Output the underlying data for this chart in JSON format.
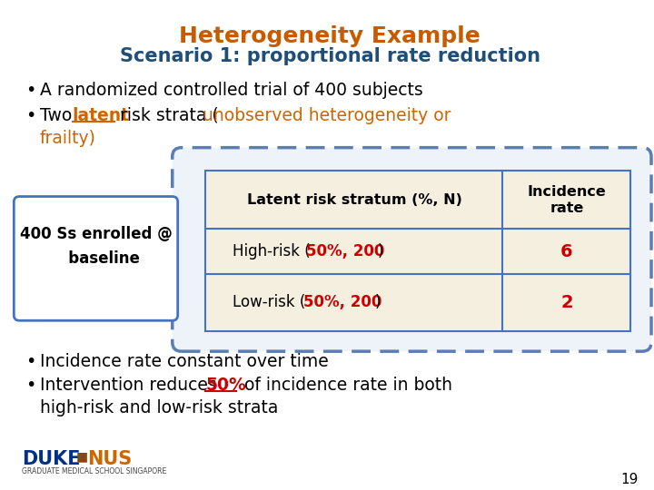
{
  "title1": "Heterogeneity Example",
  "title2": "Scenario 1: proportional rate reduction",
  "title1_color": "#C85A00",
  "title2_color": "#1F4E79",
  "bg_color": "#FFFFFF",
  "bullet1": "A randomized controlled trial of 400 subjects",
  "enrolled_box_text": "400 Ss enrolled @\n   baseline",
  "table_header1": "Latent risk stratum (%, N)",
  "table_header2": "Incidence\nrate",
  "table_row1_col2": "6",
  "table_row2_col2": "2",
  "bullet3": "Incidence rate constant over time",
  "bullet4_end": "high-risk and low-risk strata",
  "page_num": "19",
  "text_color": "#000000",
  "red_color": "#CC0000",
  "orange_color": "#CC6600",
  "blue_dark": "#1F4E79",
  "table_bg": "#F5EFE0",
  "table_border": "#4472C4",
  "enrolled_border": "#4472C4",
  "dashed_border": "#5B7DB1"
}
